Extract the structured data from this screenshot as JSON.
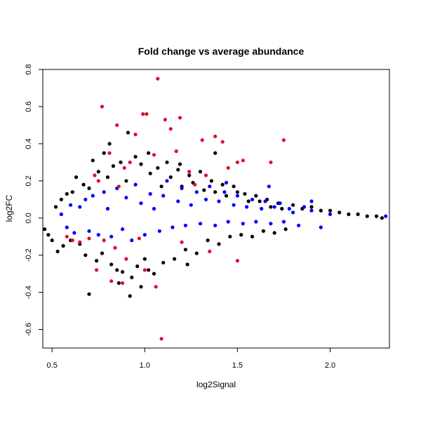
{
  "chart_data": {
    "type": "scatter",
    "title": "Fold change vs average abundance",
    "xlabel": "log2Signal",
    "ylabel": "log2FC",
    "xlim": [
      0.45,
      2.32
    ],
    "ylim": [
      -0.7,
      0.8
    ],
    "x_ticks": [
      0.5,
      1.0,
      1.5,
      2.0
    ],
    "x_tick_labels": [
      "0.5",
      "1.0",
      "1.5",
      "2.0"
    ],
    "y_ticks": [
      -0.6,
      -0.4,
      -0.2,
      0.0,
      0.2,
      0.4,
      0.6,
      0.8
    ],
    "y_tick_labels": [
      "-0.6",
      "-0.4",
      "-0.2",
      "0.0",
      "0.2",
      "0.4",
      "0.6",
      "0.8"
    ],
    "grid": false,
    "legend": "none",
    "series": [
      {
        "color": "#000000",
        "points": [
          [
            0.46,
            -0.06
          ],
          [
            0.48,
            -0.09
          ],
          [
            0.5,
            -0.12
          ],
          [
            0.52,
            0.06
          ],
          [
            0.53,
            -0.18
          ],
          [
            0.55,
            0.1
          ],
          [
            0.56,
            -0.15
          ],
          [
            0.58,
            0.13
          ],
          [
            0.6,
            -0.12
          ],
          [
            0.61,
            0.14
          ],
          [
            0.63,
            0.22
          ],
          [
            0.65,
            -0.14
          ],
          [
            0.67,
            0.18
          ],
          [
            0.68,
            -0.2
          ],
          [
            0.7,
            0.16
          ],
          [
            0.72,
            0.31
          ],
          [
            0.74,
            -0.23
          ],
          [
            0.75,
            0.25
          ],
          [
            0.77,
            -0.19
          ],
          [
            0.78,
            0.35
          ],
          [
            0.8,
            0.22
          ],
          [
            0.82,
            -0.25
          ],
          [
            0.83,
            0.28
          ],
          [
            0.85,
            -0.28
          ],
          [
            0.87,
            0.3
          ],
          [
            0.88,
            -0.29
          ],
          [
            0.9,
            0.2
          ],
          [
            0.91,
            0.46
          ],
          [
            0.93,
            -0.32
          ],
          [
            0.95,
            0.33
          ],
          [
            0.96,
            -0.26
          ],
          [
            0.98,
            0.29
          ],
          [
            1.0,
            -0.22
          ],
          [
            1.02,
            0.35
          ],
          [
            1.03,
            0.24
          ],
          [
            1.05,
            -0.3
          ],
          [
            1.07,
            0.27
          ],
          [
            1.09,
            0.17
          ],
          [
            1.1,
            -0.24
          ],
          [
            1.12,
            0.3
          ],
          [
            1.14,
            0.22
          ],
          [
            1.16,
            -0.22
          ],
          [
            1.18,
            0.26
          ],
          [
            1.2,
            0.17
          ],
          [
            1.22,
            -0.17
          ],
          [
            1.24,
            0.23
          ],
          [
            1.26,
            0.19
          ],
          [
            1.28,
            -0.19
          ],
          [
            1.3,
            0.25
          ],
          [
            1.32,
            0.15
          ],
          [
            1.34,
            -0.12
          ],
          [
            1.36,
            0.2
          ],
          [
            1.38,
            0.14
          ],
          [
            1.4,
            -0.14
          ],
          [
            1.42,
            0.18
          ],
          [
            1.44,
            0.12
          ],
          [
            1.46,
            -0.1
          ],
          [
            1.48,
            0.17
          ],
          [
            1.5,
            0.14
          ],
          [
            1.52,
            -0.09
          ],
          [
            1.54,
            0.13
          ],
          [
            1.56,
            0.09
          ],
          [
            1.58,
            -0.1
          ],
          [
            1.6,
            0.12
          ],
          [
            1.62,
            0.09
          ],
          [
            1.64,
            -0.07
          ],
          [
            1.66,
            0.1
          ],
          [
            1.68,
            0.06
          ],
          [
            1.7,
            -0.08
          ],
          [
            1.72,
            0.08
          ],
          [
            1.74,
            0.05
          ],
          [
            1.76,
            -0.06
          ],
          [
            1.8,
            0.07
          ],
          [
            1.85,
            0.05
          ],
          [
            1.9,
            0.06
          ],
          [
            1.95,
            0.04
          ],
          [
            2.0,
            0.04
          ],
          [
            2.05,
            0.03
          ],
          [
            2.1,
            0.02
          ],
          [
            2.15,
            0.02
          ],
          [
            2.2,
            0.01
          ],
          [
            2.25,
            0.01
          ],
          [
            2.28,
            0.0
          ],
          [
            0.7,
            -0.41
          ],
          [
            0.92,
            -0.42
          ],
          [
            0.86,
            -0.35
          ],
          [
            1.23,
            -0.25
          ],
          [
            1.02,
            -0.28
          ],
          [
            0.98,
            -0.37
          ],
          [
            0.81,
            0.4
          ],
          [
            1.19,
            0.29
          ],
          [
            1.38,
            0.35
          ]
        ]
      },
      {
        "color": "#0000ff",
        "points": [
          [
            0.55,
            0.02
          ],
          [
            0.58,
            -0.05
          ],
          [
            0.6,
            0.07
          ],
          [
            0.62,
            -0.08
          ],
          [
            0.65,
            0.06
          ],
          [
            0.68,
            0.1
          ],
          [
            0.7,
            -0.07
          ],
          [
            0.72,
            0.12
          ],
          [
            0.75,
            -0.09
          ],
          [
            0.78,
            0.14
          ],
          [
            0.8,
            0.05
          ],
          [
            0.82,
            -0.1
          ],
          [
            0.85,
            0.16
          ],
          [
            0.88,
            -0.06
          ],
          [
            0.9,
            0.11
          ],
          [
            0.93,
            -0.12
          ],
          [
            0.95,
            0.18
          ],
          [
            0.98,
            0.08
          ],
          [
            1.0,
            -0.09
          ],
          [
            1.03,
            0.13
          ],
          [
            1.05,
            0.05
          ],
          [
            1.08,
            -0.07
          ],
          [
            1.1,
            0.12
          ],
          [
            1.12,
            0.2
          ],
          [
            1.15,
            -0.05
          ],
          [
            1.18,
            0.09
          ],
          [
            1.2,
            0.16
          ],
          [
            1.22,
            -0.04
          ],
          [
            1.25,
            0.07
          ],
          [
            1.28,
            0.14
          ],
          [
            1.3,
            -0.03
          ],
          [
            1.33,
            0.1
          ],
          [
            1.35,
            0.17
          ],
          [
            1.38,
            -0.04
          ],
          [
            1.4,
            0.09
          ],
          [
            1.43,
            0.14
          ],
          [
            1.45,
            -0.02
          ],
          [
            1.48,
            0.07
          ],
          [
            1.5,
            0.12
          ],
          [
            1.53,
            -0.03
          ],
          [
            1.55,
            0.06
          ],
          [
            1.58,
            0.1
          ],
          [
            1.6,
            -0.02
          ],
          [
            1.63,
            0.05
          ],
          [
            1.65,
            0.09
          ],
          [
            1.68,
            -0.03
          ],
          [
            1.7,
            0.06
          ],
          [
            1.73,
            0.08
          ],
          [
            1.75,
            -0.02
          ],
          [
            1.78,
            0.05
          ],
          [
            1.8,
            0.03
          ],
          [
            1.83,
            -0.04
          ],
          [
            1.86,
            0.06
          ],
          [
            1.9,
            0.04
          ],
          [
            1.95,
            -0.05
          ],
          [
            2.0,
            0.02
          ],
          [
            2.3,
            0.01
          ],
          [
            1.67,
            0.17
          ],
          [
            1.44,
            0.19
          ],
          [
            1.9,
            0.09
          ]
        ]
      },
      {
        "color": "#e0102a",
        "points": [
          [
            0.77,
            0.6
          ],
          [
            0.85,
            0.5
          ],
          [
            0.95,
            0.45
          ],
          [
            0.99,
            0.56
          ],
          [
            1.01,
            0.56
          ],
          [
            1.07,
            0.75
          ],
          [
            1.11,
            0.53
          ],
          [
            1.14,
            0.48
          ],
          [
            1.19,
            0.54
          ],
          [
            1.31,
            0.42
          ],
          [
            1.38,
            0.44
          ],
          [
            1.42,
            0.41
          ],
          [
            1.5,
            0.3
          ],
          [
            1.53,
            0.31
          ],
          [
            1.68,
            0.3
          ],
          [
            1.75,
            0.42
          ],
          [
            0.73,
            0.23
          ],
          [
            0.81,
            0.35
          ],
          [
            0.92,
            0.3
          ],
          [
            1.05,
            0.34
          ],
          [
            1.17,
            0.36
          ],
          [
            1.24,
            0.25
          ],
          [
            1.33,
            0.23
          ],
          [
            1.45,
            0.27
          ],
          [
            0.75,
            0.2
          ],
          [
            0.89,
            0.27
          ],
          [
            0.58,
            -0.1
          ],
          [
            0.61,
            -0.12
          ],
          [
            0.65,
            -0.13
          ],
          [
            0.7,
            -0.11
          ],
          [
            0.78,
            -0.12
          ],
          [
            0.84,
            -0.16
          ],
          [
            0.88,
            -0.35
          ],
          [
            0.9,
            -0.22
          ],
          [
            0.97,
            -0.11
          ],
          [
            1.06,
            -0.37
          ],
          [
            1.09,
            -0.65
          ],
          [
            1.2,
            -0.13
          ],
          [
            1.35,
            -0.18
          ],
          [
            1.5,
            -0.23
          ],
          [
            0.74,
            -0.28
          ],
          [
            0.82,
            -0.34
          ],
          [
            1.0,
            -0.28
          ],
          [
            0.86,
            0.17
          ],
          [
            1.27,
            0.18
          ]
        ]
      }
    ]
  }
}
